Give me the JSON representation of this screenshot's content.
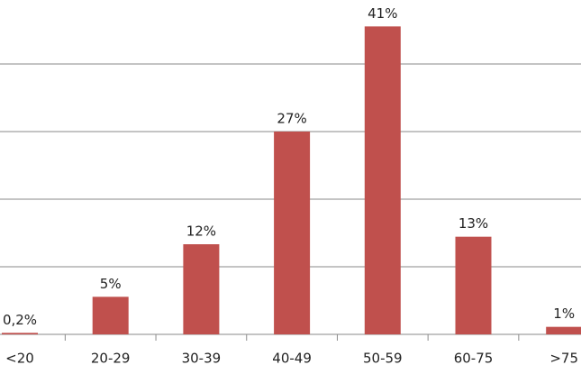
{
  "chart_data": {
    "type": "bar",
    "categories": [
      "<20",
      "20-29",
      "30-39",
      "40-49",
      "50-59",
      "60-75",
      ">75"
    ],
    "values": [
      0.2,
      5,
      12,
      27,
      41,
      13,
      1
    ],
    "value_labels": [
      "0,2%",
      "5%",
      "12%",
      "27%",
      "41%",
      "13%",
      "1%"
    ],
    "color": "#c0504d",
    "ylim": [
      0,
      45
    ],
    "yticks": [
      0,
      9,
      18,
      27,
      36
    ],
    "grid": true
  }
}
